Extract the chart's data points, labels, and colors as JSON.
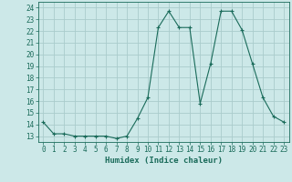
{
  "x": [
    0,
    1,
    2,
    3,
    4,
    5,
    6,
    7,
    8,
    9,
    10,
    11,
    12,
    13,
    14,
    15,
    16,
    17,
    18,
    19,
    20,
    21,
    22,
    23
  ],
  "y": [
    14.2,
    13.2,
    13.2,
    13.0,
    13.0,
    13.0,
    13.0,
    12.8,
    13.0,
    14.5,
    16.3,
    22.3,
    23.7,
    22.3,
    22.3,
    15.8,
    19.2,
    23.7,
    23.7,
    22.1,
    19.2,
    16.3,
    14.7,
    14.2
  ],
  "line_color": "#1a6b5a",
  "marker": "+",
  "marker_size": 3,
  "bg_color": "#cce8e8",
  "grid_color": "#aacccc",
  "xlabel": "Humidex (Indice chaleur)",
  "xlim": [
    -0.5,
    23.5
  ],
  "ylim": [
    12.5,
    24.5
  ],
  "yticks": [
    13,
    14,
    15,
    16,
    17,
    18,
    19,
    20,
    21,
    22,
    23,
    24
  ],
  "xticks": [
    0,
    1,
    2,
    3,
    4,
    5,
    6,
    7,
    8,
    9,
    10,
    11,
    12,
    13,
    14,
    15,
    16,
    17,
    18,
    19,
    20,
    21,
    22,
    23
  ],
  "tick_fontsize": 5.5,
  "xlabel_fontsize": 6.5
}
